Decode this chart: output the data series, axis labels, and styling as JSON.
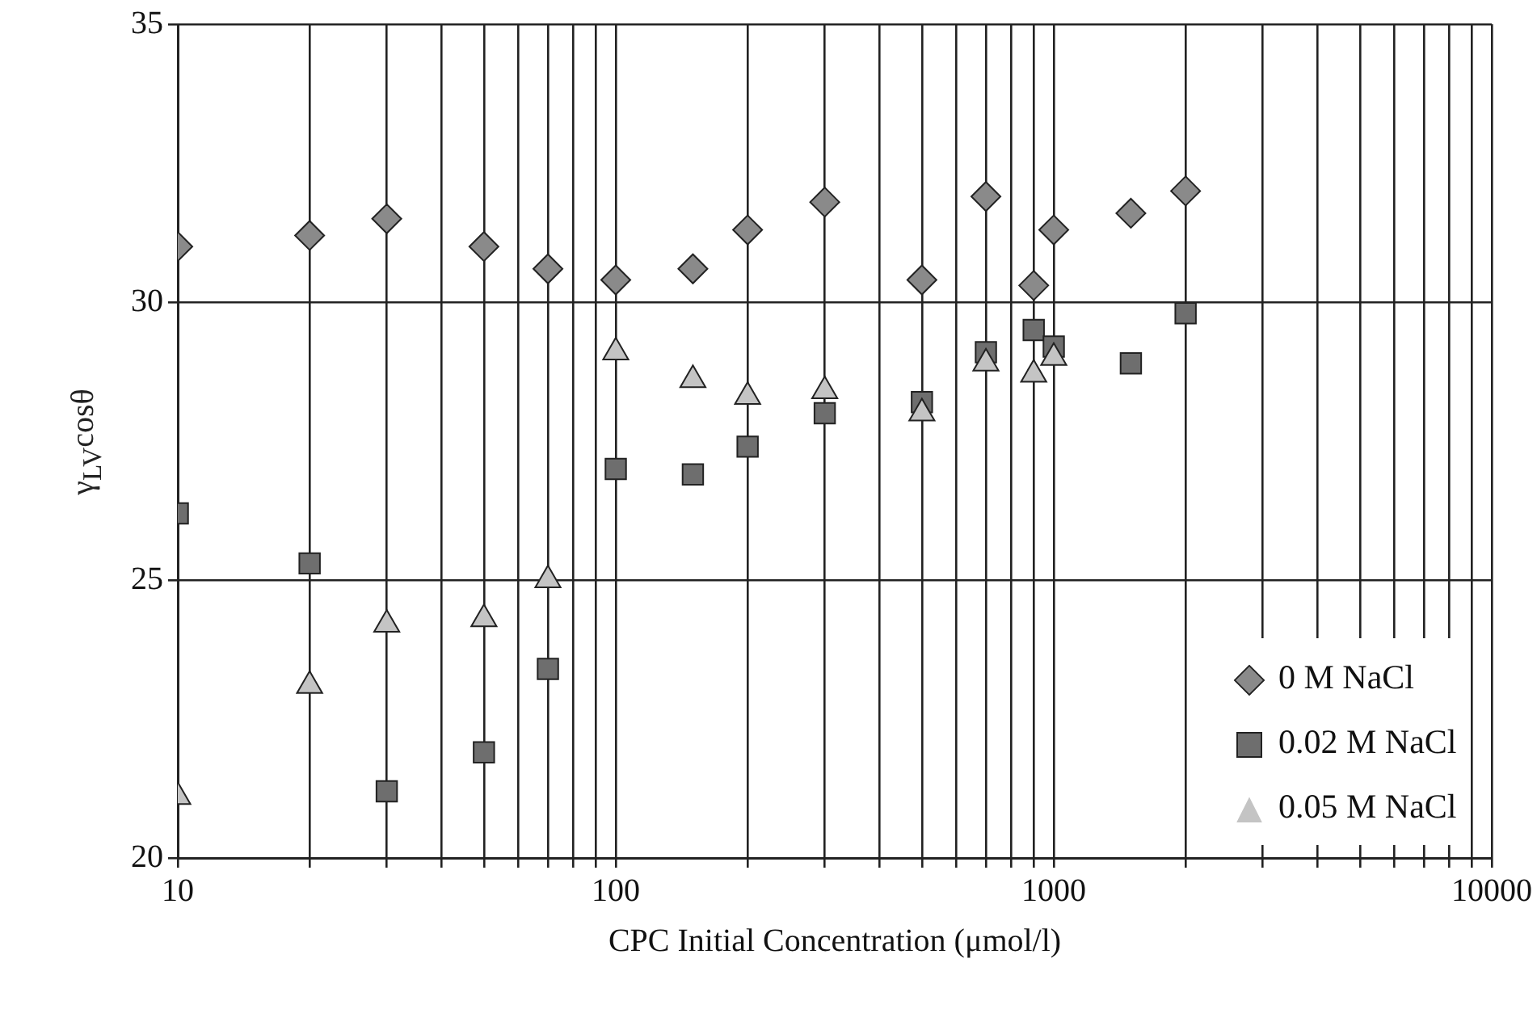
{
  "chart_data": {
    "type": "scatter",
    "xlabel": "CPC Initial Concentration (μmol/l)",
    "ylabel": "γ$_{LV}$cosθ",
    "log": "x",
    "grid": true,
    "legend": "bottom right",
    "xlim": [
      10,
      10000
    ],
    "ylim": [
      20,
      35
    ],
    "xticks": [
      10,
      {
        "value": 20,
        "label": null
      },
      {
        "value": 30,
        "label": null
      },
      {
        "value": 40,
        "label": null
      },
      {
        "value": 50,
        "label": null
      },
      {
        "value": 60,
        "label": null
      },
      {
        "value": 70,
        "label": null
      },
      {
        "value": 80,
        "label": null
      },
      {
        "value": 90,
        "label": null
      },
      100,
      {
        "value": 200,
        "label": null
      },
      {
        "value": 300,
        "label": null
      },
      {
        "value": 400,
        "label": null
      },
      {
        "value": 500,
        "label": null
      },
      {
        "value": 600,
        "label": null
      },
      {
        "value": 700,
        "label": null
      },
      {
        "value": 800,
        "label": null
      },
      {
        "value": 900,
        "label": null
      },
      1000,
      {
        "value": 2000,
        "label": null
      },
      {
        "value": 3000,
        "label": null
      },
      {
        "value": 4000,
        "label": null
      },
      {
        "value": 5000,
        "label": null
      },
      {
        "value": 6000,
        "label": null
      },
      {
        "value": 7000,
        "label": null
      },
      {
        "value": 8000,
        "label": null
      },
      {
        "value": 9000,
        "label": null
      },
      10000
    ],
    "yticks": [
      20,
      25,
      30,
      35
    ],
    "x": [
      10,
      20,
      30,
      50,
      70,
      100,
      150,
      200,
      300,
      500,
      700,
      900,
      1000,
      1500,
      2000
    ],
    "series": [
      {
        "name": "0 M NaCl",
        "color": "#8a8a8a",
        "marker": "diamond",
        "values": [
          31.0,
          31.2,
          31.5,
          31.0,
          30.6,
          30.4,
          30.6,
          31.3,
          31.8,
          30.4,
          31.9,
          30.3,
          31.3,
          31.6,
          32.0
        ]
      },
      {
        "name": "0.02 M NaCl",
        "color": "#6e6e6e",
        "marker": "square",
        "values": [
          26.2,
          25.3,
          21.2,
          21.9,
          23.4,
          27.0,
          26.9,
          27.4,
          28.0,
          28.2,
          29.1,
          29.5,
          29.2,
          28.9,
          29.8
        ]
      },
      {
        "name": "0.05 M NaCl",
        "color": "#c4c4c4",
        "marker": "triangle",
        "x": [
          10,
          20,
          30,
          50,
          70,
          100,
          150,
          200,
          300,
          500,
          700,
          900,
          1000
        ],
        "values": [
          21.1,
          23.1,
          24.2,
          24.3,
          25.0,
          29.1,
          28.6,
          28.3,
          28.4,
          28.0,
          28.9,
          28.7,
          29.0
        ]
      }
    ]
  }
}
